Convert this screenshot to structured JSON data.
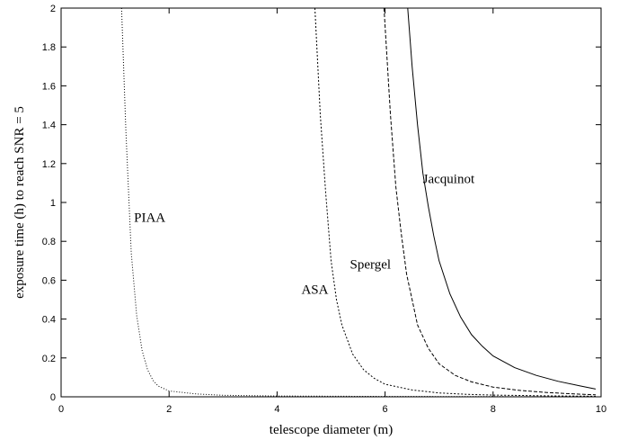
{
  "chart_data": {
    "type": "line",
    "xlabel": "telescope diameter (m)",
    "ylabel": "exposure time (h) to reach SNR = 5",
    "xlim": [
      0,
      10
    ],
    "ylim": [
      0,
      2
    ],
    "x_ticks": [
      "0",
      "2",
      "4",
      "6",
      "8",
      "10"
    ],
    "y_ticks": [
      "0",
      "0.2",
      "0.4",
      "0.6",
      "0.8",
      "1",
      "1.2",
      "1.4",
      "1.6",
      "1.8",
      "2"
    ],
    "grid": false,
    "series": [
      {
        "name": "PIAA",
        "style": "dotted",
        "x": [
          1.12,
          1.2,
          1.3,
          1.4,
          1.5,
          1.6,
          1.7,
          1.8,
          2.0,
          2.5,
          3.0,
          4.0,
          6.0,
          8.0,
          9.9
        ],
        "y": [
          2.0,
          1.37,
          0.74,
          0.42,
          0.24,
          0.14,
          0.085,
          0.055,
          0.03,
          0.015,
          0.008,
          0.004,
          0.002,
          0.001,
          0.0005
        ]
      },
      {
        "name": "ASA",
        "style": "short-dashed",
        "x": [
          4.7,
          4.8,
          4.9,
          5.0,
          5.1,
          5.2,
          5.4,
          5.6,
          5.8,
          6.0,
          6.5,
          7.0,
          7.5,
          8.0,
          9.0,
          9.9
        ],
        "y": [
          2.0,
          1.45,
          1.05,
          0.7,
          0.5,
          0.37,
          0.22,
          0.14,
          0.095,
          0.065,
          0.035,
          0.02,
          0.013,
          0.009,
          0.005,
          0.003
        ]
      },
      {
        "name": "Spergel",
        "style": "dashed",
        "x": [
          5.98,
          6.1,
          6.2,
          6.3,
          6.4,
          6.5,
          6.6,
          6.8,
          7.0,
          7.3,
          7.6,
          8.0,
          8.5,
          9.0,
          9.5,
          9.9
        ],
        "y": [
          2.0,
          1.45,
          1.08,
          0.84,
          0.63,
          0.5,
          0.37,
          0.25,
          0.17,
          0.11,
          0.077,
          0.05,
          0.033,
          0.022,
          0.015,
          0.01
        ]
      },
      {
        "name": "Jacquinot",
        "style": "solid",
        "x": [
          6.42,
          6.5,
          6.6,
          6.7,
          6.8,
          6.9,
          7.0,
          7.2,
          7.4,
          7.6,
          7.8,
          8.0,
          8.4,
          8.8,
          9.2,
          9.6,
          9.9
        ],
        "y": [
          2.0,
          1.7,
          1.4,
          1.15,
          0.98,
          0.83,
          0.7,
          0.53,
          0.41,
          0.32,
          0.26,
          0.21,
          0.15,
          0.11,
          0.08,
          0.057,
          0.04
        ]
      }
    ],
    "annotations": [
      {
        "text": "PIAA",
        "x": 1.35,
        "y": 0.9
      },
      {
        "text": "ASA",
        "x": 4.45,
        "y": 0.53
      },
      {
        "text": "Spergel",
        "x": 5.35,
        "y": 0.66
      },
      {
        "text": "Jacquinot",
        "x": 6.7,
        "y": 1.1
      }
    ]
  }
}
